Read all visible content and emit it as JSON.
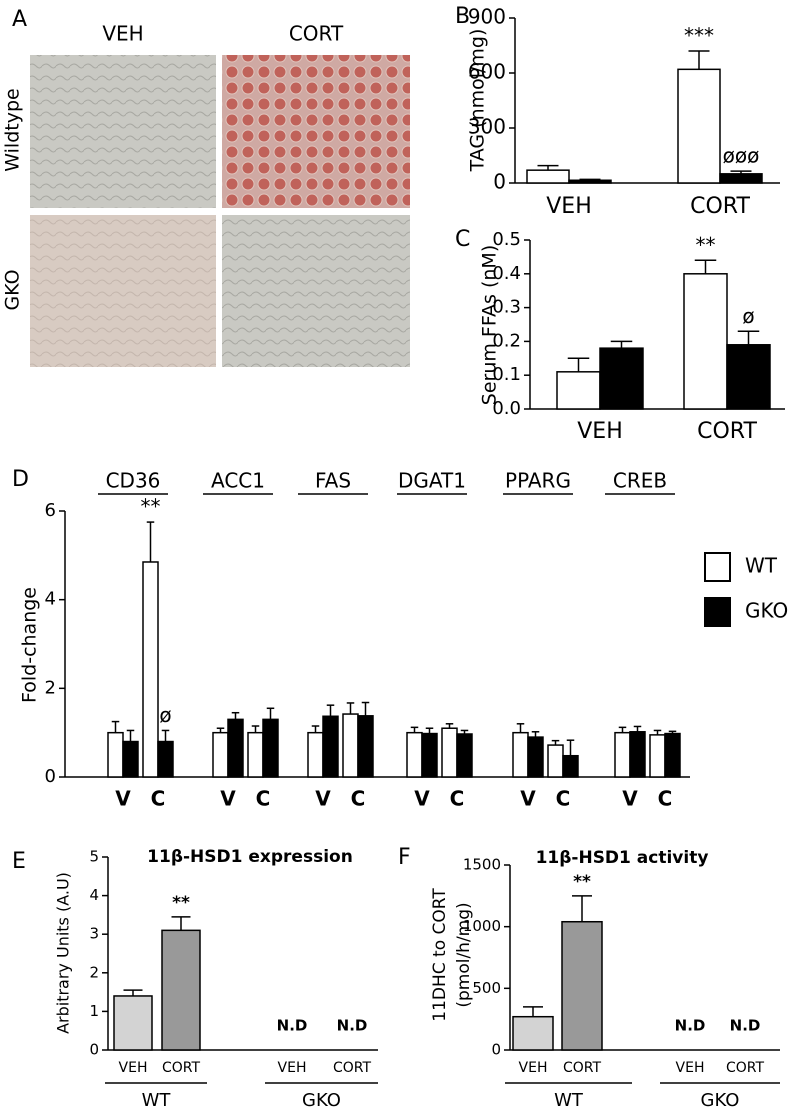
{
  "panel_a": {
    "label": "A",
    "columns": [
      "VEH",
      "CORT"
    ],
    "rows": [
      "Wildtype",
      "GKO"
    ]
  },
  "chart_data": [
    {
      "type": "bar",
      "label": "B",
      "y_label": "TAG (nmol/mg)",
      "categories": [
        "VEH",
        "CORT"
      ],
      "ylim": [
        0,
        900
      ],
      "yticks": [
        0,
        300,
        600,
        900
      ],
      "series": [
        {
          "color": "#ffffff",
          "values": [
            70,
            620
          ],
          "errors": [
            25,
            100
          ],
          "annotations": [
            null,
            "***"
          ]
        },
        {
          "color": "#000000",
          "values": [
            15,
            50
          ],
          "errors": [
            5,
            15
          ],
          "annotations": [
            null,
            "øøø"
          ]
        }
      ]
    },
    {
      "type": "bar",
      "label": "C",
      "y_label": "Serum FFAs (nM)",
      "categories": [
        "VEH",
        "CORT"
      ],
      "ylim": [
        0,
        0.5
      ],
      "yticks": [
        {
          "value": 0,
          "label": "0.0"
        },
        0.1,
        0.2,
        0.3,
        0.4,
        0.5
      ],
      "series": [
        {
          "color": "#ffffff",
          "values": [
            0.11,
            0.4
          ],
          "errors": [
            0.04,
            0.04
          ],
          "annotations": [
            null,
            "**"
          ]
        },
        {
          "color": "#000000",
          "values": [
            0.18,
            0.19
          ],
          "errors": [
            0.02,
            0.04
          ],
          "annotations": [
            null,
            "ø"
          ]
        }
      ]
    },
    {
      "type": "bar",
      "label": "D",
      "y_label": "Fold-change",
      "groups": [
        "CD36",
        "ACC1",
        "FAS",
        "DGAT1",
        "PPARG",
        "CREB"
      ],
      "categories": [
        "V",
        "C",
        "V",
        "C",
        "V",
        "C",
        "V",
        "C",
        "V",
        "C",
        "V",
        "C"
      ],
      "ylim": [
        0,
        6
      ],
      "yticks": [
        0,
        2,
        4,
        6
      ],
      "series": [
        {
          "name": "WT",
          "color": "#ffffff",
          "values": [
            1.0,
            4.85,
            1.0,
            1.0,
            1.0,
            1.42,
            1.0,
            1.1,
            1.0,
            0.72,
            1.0,
            0.95
          ],
          "errors": [
            0.25,
            0.9,
            0.1,
            0.15,
            0.15,
            0.25,
            0.12,
            0.1,
            0.2,
            0.1,
            0.12,
            0.1
          ],
          "annotations": [
            null,
            "**",
            null,
            null,
            null,
            null,
            null,
            null,
            null,
            null,
            null,
            null
          ]
        },
        {
          "name": "GKO",
          "color": "#000000",
          "values": [
            0.8,
            0.8,
            1.3,
            1.3,
            1.37,
            1.38,
            0.98,
            0.97,
            0.9,
            0.48,
            1.02,
            0.98
          ],
          "errors": [
            0.25,
            0.25,
            0.15,
            0.25,
            0.25,
            0.3,
            0.12,
            0.08,
            0.12,
            0.35,
            0.12,
            0.05
          ],
          "annotations": [
            null,
            "ø",
            null,
            null,
            null,
            null,
            null,
            null,
            null,
            null,
            null,
            null
          ]
        }
      ]
    },
    {
      "type": "bar",
      "label": "E",
      "title": "11β-HSD1 expression",
      "y_label": "Arbitrary Units (A.U)",
      "groups": [
        "WT",
        "GKO"
      ],
      "categories": [
        "VEH",
        "CORT",
        "VEH",
        "CORT"
      ],
      "values": [
        1.4,
        3.1,
        null,
        null
      ],
      "errors": [
        0.15,
        0.35,
        null,
        null
      ],
      "value_labels": [
        null,
        null,
        "N.D",
        "N.D"
      ],
      "annotations": [
        null,
        "**",
        null,
        null
      ],
      "colors": [
        "#d3d3d3",
        "#999999",
        "#d3d3d3",
        "#999999"
      ],
      "ylim": [
        0,
        5
      ],
      "yticks": [
        0,
        1,
        2,
        3,
        4,
        5
      ]
    },
    {
      "type": "bar",
      "label": "F",
      "title": "11β-HSD1 activity",
      "y_label": [
        "11DHC to CORT",
        "(pmol/h/mg)"
      ],
      "groups": [
        "WT",
        "GKO"
      ],
      "categories": [
        "VEH",
        "CORT",
        "VEH",
        "CORT"
      ],
      "values": [
        270,
        1040,
        null,
        null
      ],
      "errors": [
        80,
        210,
        null,
        null
      ],
      "value_labels": [
        null,
        null,
        "N.D",
        "N.D"
      ],
      "annotations": [
        null,
        "**",
        null,
        null
      ],
      "colors": [
        "#d3d3d3",
        "#999999",
        "#d3d3d3",
        "#999999"
      ],
      "ylim": [
        0,
        1500
      ],
      "yticks": [
        0,
        500,
        1000,
        1500
      ]
    }
  ]
}
